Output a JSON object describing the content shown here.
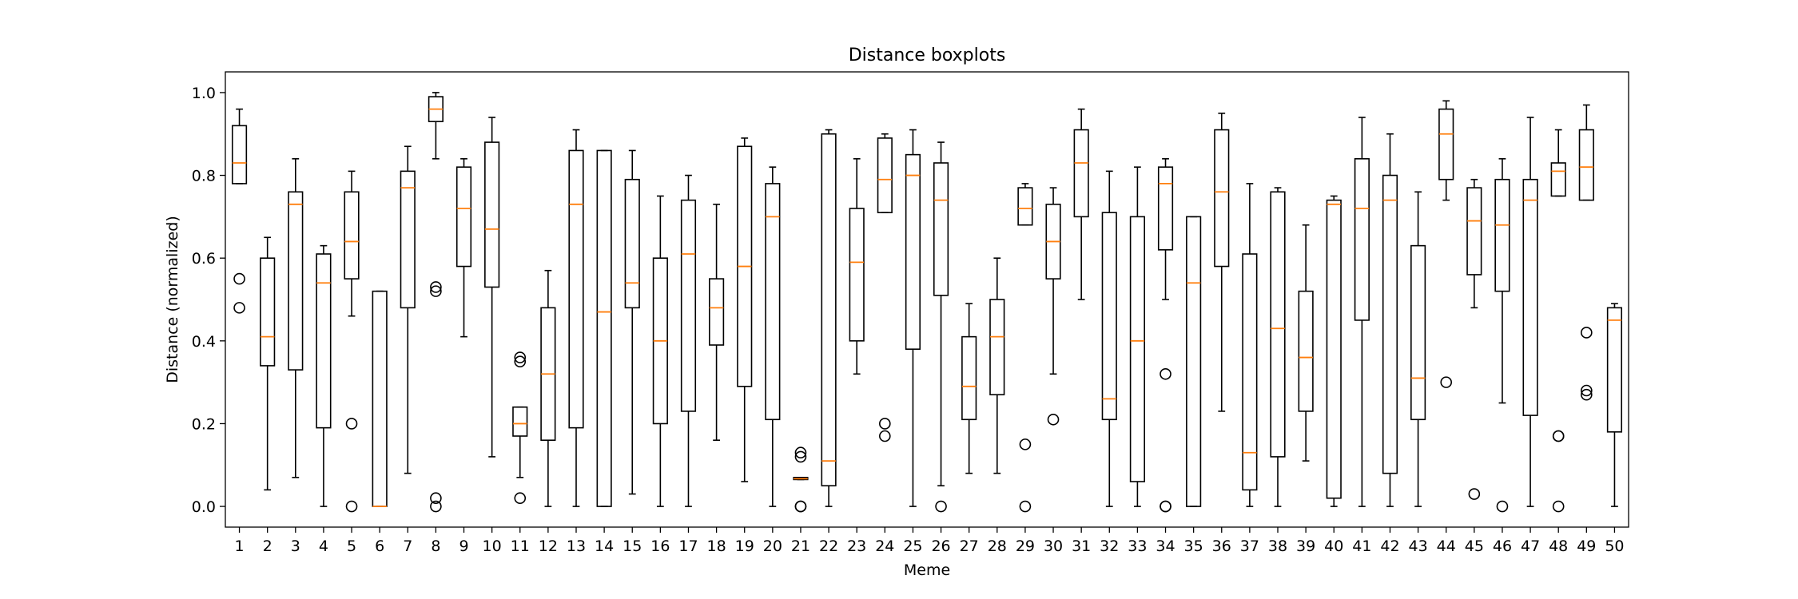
{
  "chart_data": {
    "type": "boxplot",
    "title": "Distance boxplots",
    "xlabel": "Meme",
    "ylabel": "Distance (normalized)",
    "ylim": [
      -0.05,
      1.05
    ],
    "yticks": [
      0.0,
      0.2,
      0.4,
      0.6,
      0.8,
      1.0
    ],
    "ytick_labels": [
      "0.0",
      "0.2",
      "0.4",
      "0.6",
      "0.8",
      "1.0"
    ],
    "grid": false,
    "colors": {
      "box": "#000000",
      "median": "#ff7f0e"
    },
    "categories": [
      "1",
      "2",
      "3",
      "4",
      "5",
      "6",
      "7",
      "8",
      "9",
      "10",
      "11",
      "12",
      "13",
      "14",
      "15",
      "16",
      "17",
      "18",
      "19",
      "20",
      "21",
      "22",
      "23",
      "24",
      "25",
      "26",
      "27",
      "28",
      "29",
      "30",
      "31",
      "32",
      "33",
      "34",
      "35",
      "36",
      "37",
      "38",
      "39",
      "40",
      "41",
      "42",
      "43",
      "44",
      "45",
      "46",
      "47",
      "48",
      "49",
      "50"
    ],
    "boxes": [
      {
        "wlo": 0.78,
        "q1": 0.78,
        "med": 0.83,
        "q3": 0.92,
        "whi": 0.96,
        "fliers": [
          0.55,
          0.48
        ]
      },
      {
        "wlo": 0.04,
        "q1": 0.34,
        "med": 0.41,
        "q3": 0.6,
        "whi": 0.65,
        "fliers": []
      },
      {
        "wlo": 0.07,
        "q1": 0.33,
        "med": 0.73,
        "q3": 0.76,
        "whi": 0.84,
        "fliers": []
      },
      {
        "wlo": 0.0,
        "q1": 0.19,
        "med": 0.54,
        "q3": 0.61,
        "whi": 0.63,
        "fliers": []
      },
      {
        "wlo": 0.46,
        "q1": 0.55,
        "med": 0.64,
        "q3": 0.76,
        "whi": 0.81,
        "fliers": [
          0.2,
          0.0
        ]
      },
      {
        "wlo": 0.0,
        "q1": 0.0,
        "med": 0.0,
        "q3": 0.52,
        "whi": 0.52,
        "fliers": []
      },
      {
        "wlo": 0.08,
        "q1": 0.48,
        "med": 0.77,
        "q3": 0.81,
        "whi": 0.87,
        "fliers": []
      },
      {
        "wlo": 0.84,
        "q1": 0.93,
        "med": 0.96,
        "q3": 0.99,
        "whi": 1.0,
        "fliers": [
          0.53,
          0.52,
          0.02,
          0.0
        ]
      },
      {
        "wlo": 0.41,
        "q1": 0.58,
        "med": 0.72,
        "q3": 0.82,
        "whi": 0.84,
        "fliers": []
      },
      {
        "wlo": 0.12,
        "q1": 0.53,
        "med": 0.67,
        "q3": 0.88,
        "whi": 0.94,
        "fliers": []
      },
      {
        "wlo": 0.07,
        "q1": 0.17,
        "med": 0.2,
        "q3": 0.24,
        "whi": 0.24,
        "fliers": [
          0.36,
          0.35,
          0.02
        ]
      },
      {
        "wlo": 0.0,
        "q1": 0.16,
        "med": 0.32,
        "q3": 0.48,
        "whi": 0.57,
        "fliers": []
      },
      {
        "wlo": 0.0,
        "q1": 0.19,
        "med": 0.73,
        "q3": 0.86,
        "whi": 0.91,
        "fliers": []
      },
      {
        "wlo": 0.0,
        "q1": 0.0,
        "med": 0.47,
        "q3": 0.86,
        "whi": 0.86,
        "fliers": []
      },
      {
        "wlo": 0.03,
        "q1": 0.48,
        "med": 0.54,
        "q3": 0.79,
        "whi": 0.86,
        "fliers": []
      },
      {
        "wlo": 0.0,
        "q1": 0.2,
        "med": 0.4,
        "q3": 0.6,
        "whi": 0.75,
        "fliers": []
      },
      {
        "wlo": 0.0,
        "q1": 0.23,
        "med": 0.61,
        "q3": 0.74,
        "whi": 0.8,
        "fliers": []
      },
      {
        "wlo": 0.16,
        "q1": 0.39,
        "med": 0.48,
        "q3": 0.55,
        "whi": 0.73,
        "fliers": []
      },
      {
        "wlo": 0.06,
        "q1": 0.29,
        "med": 0.58,
        "q3": 0.87,
        "whi": 0.89,
        "fliers": []
      },
      {
        "wlo": 0.0,
        "q1": 0.21,
        "med": 0.7,
        "q3": 0.78,
        "whi": 0.82,
        "fliers": []
      },
      {
        "wlo": 0.065,
        "q1": 0.065,
        "med": 0.067,
        "q3": 0.07,
        "whi": 0.07,
        "fliers": [
          0.13,
          0.12,
          0.0,
          0.0
        ]
      },
      {
        "wlo": 0.0,
        "q1": 0.05,
        "med": 0.11,
        "q3": 0.9,
        "whi": 0.91,
        "fliers": []
      },
      {
        "wlo": 0.32,
        "q1": 0.4,
        "med": 0.59,
        "q3": 0.72,
        "whi": 0.84,
        "fliers": []
      },
      {
        "wlo": 0.71,
        "q1": 0.71,
        "med": 0.79,
        "q3": 0.89,
        "whi": 0.9,
        "fliers": [
          0.2,
          0.17
        ]
      },
      {
        "wlo": 0.0,
        "q1": 0.38,
        "med": 0.8,
        "q3": 0.85,
        "whi": 0.91,
        "fliers": []
      },
      {
        "wlo": 0.05,
        "q1": 0.51,
        "med": 0.74,
        "q3": 0.83,
        "whi": 0.88,
        "fliers": [
          0.0
        ]
      },
      {
        "wlo": 0.08,
        "q1": 0.21,
        "med": 0.29,
        "q3": 0.41,
        "whi": 0.49,
        "fliers": []
      },
      {
        "wlo": 0.08,
        "q1": 0.27,
        "med": 0.41,
        "q3": 0.5,
        "whi": 0.6,
        "fliers": []
      },
      {
        "wlo": 0.68,
        "q1": 0.68,
        "med": 0.72,
        "q3": 0.77,
        "whi": 0.78,
        "fliers": [
          0.15,
          0.0
        ]
      },
      {
        "wlo": 0.32,
        "q1": 0.55,
        "med": 0.64,
        "q3": 0.73,
        "whi": 0.77,
        "fliers": [
          0.21
        ]
      },
      {
        "wlo": 0.5,
        "q1": 0.7,
        "med": 0.83,
        "q3": 0.91,
        "whi": 0.96,
        "fliers": []
      },
      {
        "wlo": 0.0,
        "q1": 0.21,
        "med": 0.26,
        "q3": 0.71,
        "whi": 0.81,
        "fliers": []
      },
      {
        "wlo": 0.0,
        "q1": 0.06,
        "med": 0.4,
        "q3": 0.7,
        "whi": 0.82,
        "fliers": []
      },
      {
        "wlo": 0.5,
        "q1": 0.62,
        "med": 0.78,
        "q3": 0.82,
        "whi": 0.84,
        "fliers": [
          0.32,
          0.0,
          0.0
        ]
      },
      {
        "wlo": 0.0,
        "q1": 0.0,
        "med": 0.54,
        "q3": 0.7,
        "whi": 0.7,
        "fliers": []
      },
      {
        "wlo": 0.23,
        "q1": 0.58,
        "med": 0.76,
        "q3": 0.91,
        "whi": 0.95,
        "fliers": []
      },
      {
        "wlo": 0.0,
        "q1": 0.04,
        "med": 0.13,
        "q3": 0.61,
        "whi": 0.78,
        "fliers": []
      },
      {
        "wlo": 0.0,
        "q1": 0.12,
        "med": 0.43,
        "q3": 0.76,
        "whi": 0.77,
        "fliers": []
      },
      {
        "wlo": 0.11,
        "q1": 0.23,
        "med": 0.36,
        "q3": 0.52,
        "whi": 0.68,
        "fliers": []
      },
      {
        "wlo": 0.0,
        "q1": 0.02,
        "med": 0.73,
        "q3": 0.74,
        "whi": 0.75,
        "fliers": []
      },
      {
        "wlo": 0.0,
        "q1": 0.45,
        "med": 0.72,
        "q3": 0.84,
        "whi": 0.94,
        "fliers": []
      },
      {
        "wlo": 0.0,
        "q1": 0.08,
        "med": 0.74,
        "q3": 0.8,
        "whi": 0.9,
        "fliers": []
      },
      {
        "wlo": 0.0,
        "q1": 0.21,
        "med": 0.31,
        "q3": 0.63,
        "whi": 0.76,
        "fliers": []
      },
      {
        "wlo": 0.74,
        "q1": 0.79,
        "med": 0.9,
        "q3": 0.96,
        "whi": 0.98,
        "fliers": [
          0.3
        ]
      },
      {
        "wlo": 0.48,
        "q1": 0.56,
        "med": 0.69,
        "q3": 0.77,
        "whi": 0.79,
        "fliers": [
          0.03
        ]
      },
      {
        "wlo": 0.25,
        "q1": 0.52,
        "med": 0.68,
        "q3": 0.79,
        "whi": 0.84,
        "fliers": [
          0.0
        ]
      },
      {
        "wlo": 0.0,
        "q1": 0.22,
        "med": 0.74,
        "q3": 0.79,
        "whi": 0.94,
        "fliers": []
      },
      {
        "wlo": 0.75,
        "q1": 0.75,
        "med": 0.81,
        "q3": 0.83,
        "whi": 0.91,
        "fliers": [
          0.17,
          0.17,
          0.0
        ]
      },
      {
        "wlo": 0.74,
        "q1": 0.74,
        "med": 0.82,
        "q3": 0.91,
        "whi": 0.97,
        "fliers": [
          0.42,
          0.28,
          0.27
        ]
      },
      {
        "wlo": 0.0,
        "q1": 0.18,
        "med": 0.45,
        "q3": 0.48,
        "whi": 0.49,
        "fliers": []
      }
    ]
  }
}
